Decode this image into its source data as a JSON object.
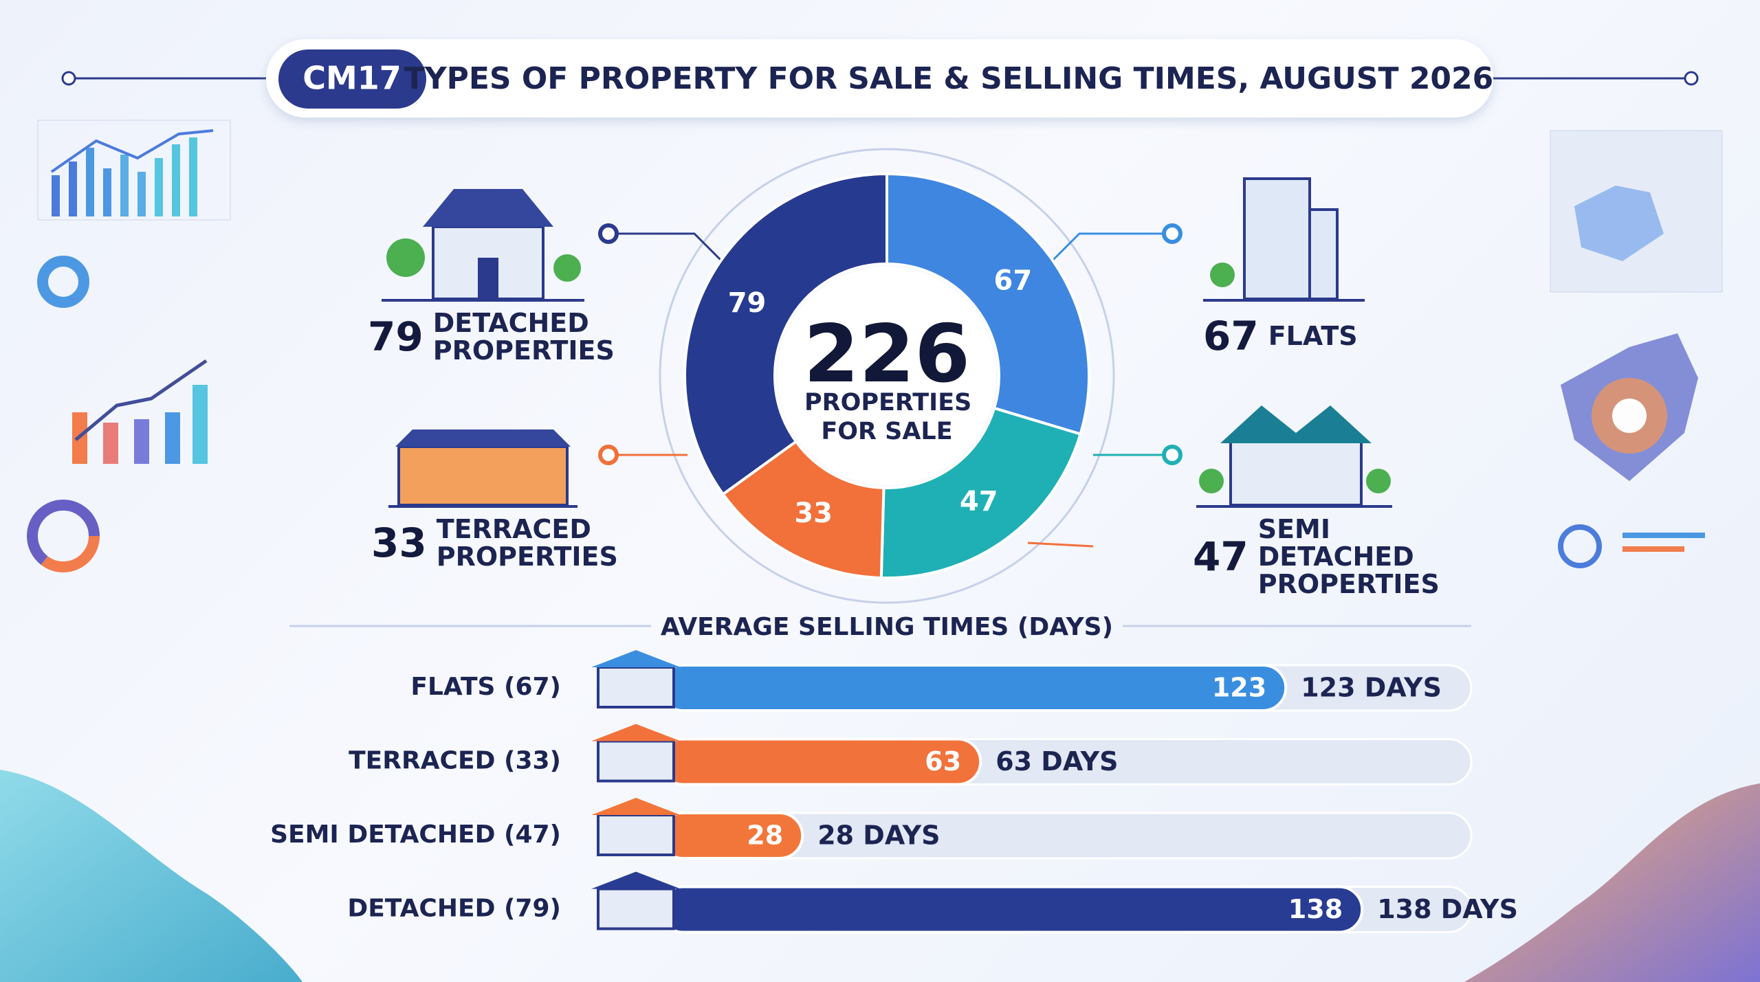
{
  "header": {
    "badge": "CM17",
    "title": "TYPES OF PROPERTY FOR SALE & SELLING TIMES, AUGUST 2026"
  },
  "chart_data": [
    {
      "type": "donut",
      "total": 226,
      "total_label": "PROPERTIES FOR SALE",
      "categories": [
        "FLATS",
        "SEMI DETACHED PROPERTIES",
        "TERRACED PROPERTIES",
        "DETACHED PROPERTIES"
      ],
      "values": [
        67,
        47,
        33,
        79
      ],
      "colors": [
        "#3f86e0",
        "#1fb0b5",
        "#f2703a",
        "#263a8f"
      ]
    },
    {
      "type": "bar",
      "title": "AVERAGE SELLING TIMES (DAYS)",
      "categories": [
        "FLATS (67)",
        "TERRACED (33)",
        "SEMI DETACHED (47)",
        "DETACHED (79)"
      ],
      "values": [
        123,
        63,
        28,
        138
      ],
      "value_labels": [
        "123 DAYS",
        "63 DAYS",
        "28 DAYS",
        "138 DAYS"
      ],
      "colors": [
        "#3a8ee0",
        "#f2723c",
        "#f2763a",
        "#283c94"
      ]
    }
  ]
}
